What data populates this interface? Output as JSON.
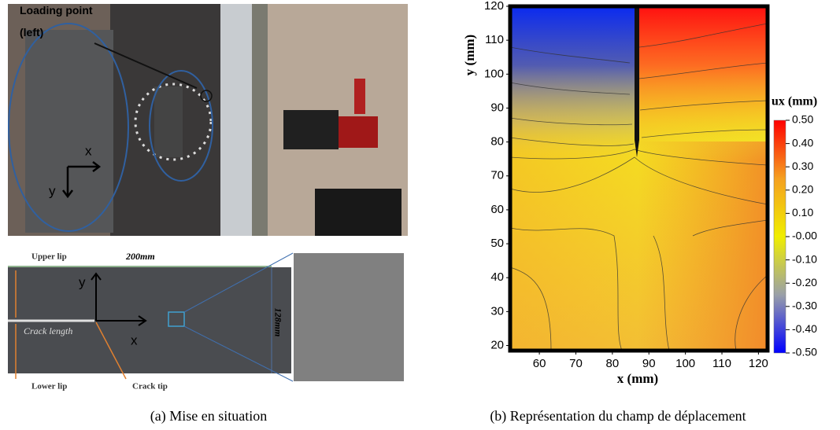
{
  "panel_a": {
    "loading_label": "Loading point\n(left)",
    "photo_x": "x",
    "photo_y": "y",
    "upper_lip": "Upper lip",
    "width": "200mm",
    "height": "128mm",
    "crack_length": "Crack length",
    "lower_lip": "Lower lip",
    "crack_tip": "Crack tip",
    "specimen_x": "x",
    "specimen_y": "y",
    "caption": "(a) Mise en situation"
  },
  "panel_b": {
    "xlabel": "x (mm)",
    "ylabel": "y (mm)",
    "xlim": [
      52,
      122.5
    ],
    "ylim": [
      18.5,
      120
    ],
    "xticks": [
      60,
      70,
      80,
      90,
      100,
      110,
      120
    ],
    "yticks": [
      20,
      30,
      40,
      50,
      60,
      70,
      80,
      90,
      100,
      110,
      120
    ],
    "colorbar": {
      "title": "ux (mm)",
      "lim": [
        -0.5,
        0.5
      ],
      "colors": [
        "#0000ff",
        "#9aa0a8",
        "#f0ee00",
        "#f5a020",
        "#ff0000"
      ],
      "ticks": [
        {
          "value": 0.5,
          "label": "0.50"
        },
        {
          "value": 0.4,
          "label": "0.40"
        },
        {
          "value": 0.3,
          "label": "0.30"
        },
        {
          "value": 0.2,
          "label": "0.20"
        },
        {
          "value": 0.1,
          "label": "0.10"
        },
        {
          "value": 0,
          "label": "-0.00"
        },
        {
          "value": -0.1,
          "label": "-0.10"
        },
        {
          "value": -0.2,
          "label": "-0.20"
        },
        {
          "value": -0.3,
          "label": "-0.30"
        },
        {
          "value": -0.4,
          "label": "-0.40"
        },
        {
          "value": -0.5,
          "label": "-0.50"
        }
      ]
    },
    "caption": "(b) Représentation du champ de déplacement"
  }
}
